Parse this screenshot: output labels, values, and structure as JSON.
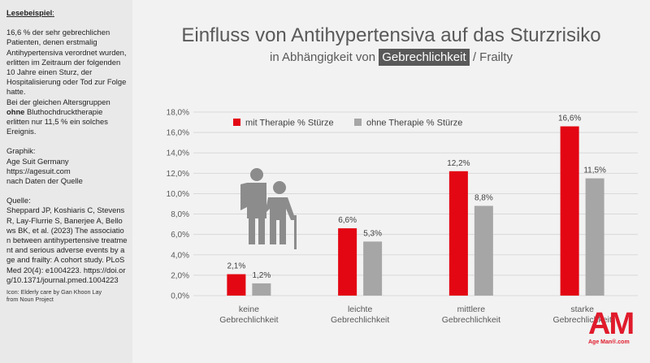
{
  "sidebar": {
    "heading": "Lesebeispiel",
    "heading_suffix": ":",
    "example_1": "16,6 % der sehr gebrechlichen Patienten, denen erstmalig Antihypertensiva verordnet wurden, erlitten im Zeitraum der folgenden 10 Jahre einen Sturz, der Hospitalisierung oder Tod zur Folge hatte.",
    "example_2a": "Bei der gleichen Altersgruppen ",
    "example_2b": "ohne",
    "example_2c": " Bluthochdrucktherapie erlitten nur 11,5 % ein solches Ereignis.",
    "graphic_label": "Graphik:",
    "graphic_1": "Age Suit Germany",
    "graphic_2": "https://agesuit.com",
    "graphic_3": "nach Daten der Quelle",
    "source_label": "Quelle:",
    "source_text": "Sheppard JP, Koshiaris C, Stevens R, Lay-Flurrie S, Banerjee A, Bellows BK, et al. (2023) The association between antihypertensive treatment and serious adverse events by age and frailty: A cohort study. PLoS Med 20(4): e1004223. https://doi.org/10.1371/journal.pmed.1004223",
    "icon_credit_1": "Icon: Elderly care by Gan Khoon Lay",
    "icon_credit_2": "from Noun Project"
  },
  "header": {
    "title": "Einfluss von Antihypertensiva auf das Sturzrisiko",
    "subtitle_pre": "in Abhängigkeit von ",
    "subtitle_highlight": "Gebrechlichkeit",
    "subtitle_post": " / Frailty"
  },
  "logo": {
    "letters": "AM",
    "brand": "Age Man®.com",
    "color": "#e01a2b"
  },
  "icon": {
    "name": "elderly-care-icon",
    "color": "#8c8c8c"
  },
  "chart_data": {
    "type": "bar",
    "categories": [
      "keine Gebrechlichkeit",
      "leichte Gebrechlichkeit",
      "mittlere Gebrechlichkeit",
      "starke Gebrechlichkeit"
    ],
    "category_lines": [
      [
        "keine",
        "Gebrechlichkeit"
      ],
      [
        "leichte",
        "Gebrechlichkeit"
      ],
      [
        "mittlere",
        "Gebrechlichkeit"
      ],
      [
        "starke",
        "Gebrechlichkeit"
      ]
    ],
    "series": [
      {
        "name": "mit Therapie % Stürze",
        "values": [
          2.1,
          6.6,
          12.2,
          16.6
        ],
        "labels": [
          "2,1%",
          "6,6%",
          "12,2%",
          "16,6%"
        ],
        "color": "#e30613"
      },
      {
        "name": "ohne Therapie % Stürze",
        "values": [
          1.2,
          5.3,
          8.8,
          11.5
        ],
        "labels": [
          "1,2%",
          "5,3%",
          "8,8%",
          "11,5%"
        ],
        "color": "#a6a6a6"
      }
    ],
    "yticks": [
      "0,0%",
      "2,0%",
      "4,0%",
      "6,0%",
      "8,0%",
      "10,0%",
      "12,0%",
      "14,0%",
      "16,0%",
      "18,0%"
    ],
    "ylim": [
      0,
      18
    ],
    "grid": true,
    "legend": "top-left"
  }
}
